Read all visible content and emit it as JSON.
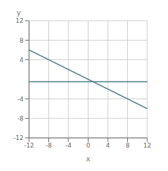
{
  "chart_data": {
    "type": "line",
    "x": [
      -12,
      12
    ],
    "series": [
      {
        "color": "#4a7a8a",
        "values": [
          -0.5,
          -0.5
        ]
      },
      {
        "color": "#4a7a8a",
        "values": [
          6,
          -6
        ]
      }
    ],
    "xlim": [
      -12,
      12
    ],
    "ylim": [
      -12,
      12
    ],
    "xticks": [
      -12,
      -8,
      -4,
      0,
      4,
      8,
      12
    ],
    "yticks": [
      -12,
      -8,
      -4,
      4,
      8,
      12
    ],
    "xlabel": "x",
    "ylabel": "y",
    "grid": true
  }
}
